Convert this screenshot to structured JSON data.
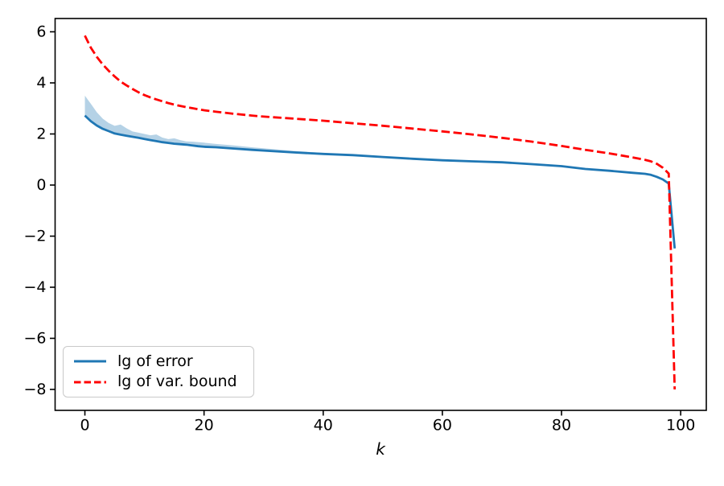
{
  "chart_data": {
    "type": "line",
    "title": "",
    "xlabel": "k",
    "ylabel": "",
    "grid": false,
    "legend_position": "lower left",
    "xlim": [
      -5,
      104.3
    ],
    "ylim": [
      -8.82,
      6.52
    ],
    "xticks": [
      0,
      20,
      40,
      60,
      80,
      100
    ],
    "yticks": [
      -8,
      -6,
      -4,
      -2,
      0,
      2,
      4,
      6
    ],
    "x": [
      0,
      1,
      2,
      3,
      4,
      5,
      6,
      7,
      8,
      9,
      10,
      11,
      12,
      13,
      14,
      15,
      16,
      17,
      18,
      19,
      20,
      22,
      25,
      28,
      30,
      35,
      40,
      45,
      50,
      55,
      60,
      65,
      70,
      75,
      80,
      84,
      88,
      92,
      94,
      95,
      96,
      97,
      98,
      99
    ],
    "series": [
      {
        "name": "lg of error",
        "color": "#1f77b4",
        "style": "solid",
        "line_width": 2.8,
        "values": [
          2.72,
          2.5,
          2.33,
          2.2,
          2.11,
          2.02,
          1.97,
          1.93,
          1.89,
          1.85,
          1.8,
          1.76,
          1.72,
          1.68,
          1.65,
          1.62,
          1.6,
          1.58,
          1.55,
          1.52,
          1.5,
          1.48,
          1.43,
          1.38,
          1.35,
          1.28,
          1.22,
          1.17,
          1.1,
          1.03,
          0.97,
          0.93,
          0.89,
          0.82,
          0.74,
          0.63,
          0.56,
          0.48,
          0.44,
          0.4,
          0.32,
          0.22,
          0.06,
          -2.48
        ]
      },
      {
        "name": "lg of var. bound",
        "color": "#ff0000",
        "style": "dashed",
        "line_width": 2.8,
        "values": [
          5.85,
          5.38,
          5.02,
          4.72,
          4.47,
          4.25,
          4.05,
          3.9,
          3.76,
          3.63,
          3.52,
          3.43,
          3.35,
          3.28,
          3.21,
          3.15,
          3.1,
          3.05,
          3.01,
          2.97,
          2.93,
          2.87,
          2.79,
          2.72,
          2.68,
          2.6,
          2.52,
          2.42,
          2.32,
          2.21,
          2.1,
          1.98,
          1.85,
          1.7,
          1.53,
          1.38,
          1.24,
          1.08,
          0.99,
          0.93,
          0.83,
          0.68,
          0.45,
          -8.0
        ]
      }
    ],
    "band": {
      "name": "error-range-band",
      "attached_series": "lg of error",
      "color": "#1f77b4",
      "opacity": 0.33,
      "upper": [
        3.5,
        3.18,
        2.85,
        2.6,
        2.43,
        2.32,
        2.37,
        2.22,
        2.1,
        2.05,
        2.0,
        1.95,
        1.98,
        1.86,
        1.8,
        1.83,
        1.76,
        1.71,
        1.7,
        1.68,
        1.66,
        1.61,
        1.55,
        1.48,
        1.44,
        1.34,
        1.26,
        1.19,
        1.12,
        1.03
      ],
      "lower": [
        2.72,
        2.5,
        2.33,
        2.2,
        2.11,
        2.02,
        1.97,
        1.93,
        1.89,
        1.85,
        1.8,
        1.76,
        1.72,
        1.68,
        1.65,
        1.62,
        1.6,
        1.58,
        1.55,
        1.52,
        1.5,
        1.48,
        1.43,
        1.38,
        1.35,
        1.28,
        1.22,
        1.17,
        1.1,
        1.03
      ]
    },
    "axis_color": "#000000",
    "tick_font_size": 19,
    "label_font_size": 19
  }
}
